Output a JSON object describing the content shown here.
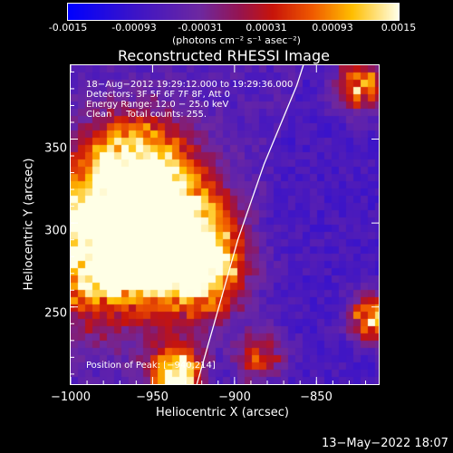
{
  "colorbar": {
    "ticks": [
      "-0.0015",
      "-0.00093",
      "-0.00031",
      "0.00031",
      "0.00093",
      "0.0015"
    ],
    "units_label": "(photons cm⁻² s⁻¹ asec⁻²)",
    "min": -0.0015,
    "max": 0.0015
  },
  "plot": {
    "title": "Reconstructed RHESSI Image",
    "xlabel": "Heliocentric X (arcsec)",
    "ylabel": "Heliocentric Y (arcsec)",
    "xlim": [
      -1000,
      -812
    ],
    "ylim": [
      204,
      394
    ],
    "xticks": [
      "−1000",
      "−950",
      "−900",
      "−850"
    ],
    "xtick_values": [
      -1000,
      -950,
      -900,
      -850
    ],
    "yticks": [
      "350",
      "300",
      "250"
    ],
    "ytick_values": [
      350,
      300,
      250
    ]
  },
  "info": {
    "line1": "18−Aug−2012 19:29:12.000 to 19:29:36.000",
    "line2": "Detectors: 3F 5F 6F 7F 8F, Att 0",
    "line3": "Energy Range: 12.0 − 25.0 keV",
    "line4": "Clean     Total counts: 255.",
    "peak": "Position of Peak: [−940,214]"
  },
  "limb": {
    "points": [
      [
        -923,
        204
      ],
      [
        -911,
        245
      ],
      [
        -898,
        290
      ],
      [
        -882,
        335
      ],
      [
        -862,
        382
      ],
      [
        -858,
        394
      ]
    ]
  },
  "footer": {
    "timestamp": "13−May−2022 18:07"
  }
}
